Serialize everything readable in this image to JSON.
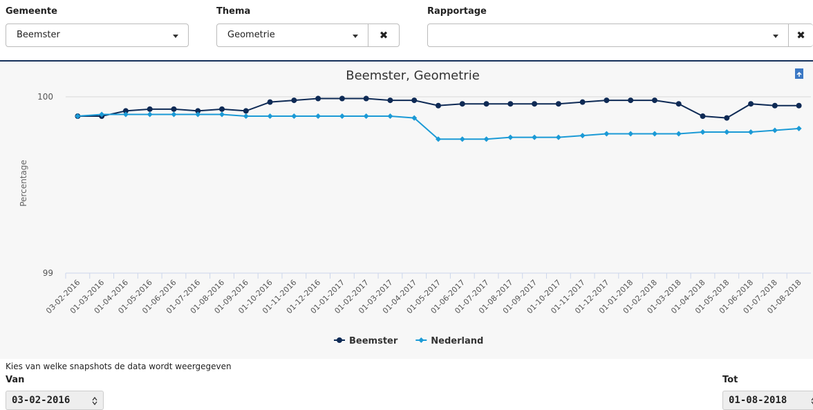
{
  "filters": [
    {
      "label": "Gemeente",
      "value": "Beemster"
    },
    {
      "label": "Thema",
      "value": "Geometrie"
    },
    {
      "label": "Rapportage",
      "value": ""
    }
  ],
  "chart_data": {
    "type": "line",
    "title": "Beemster, Geometrie",
    "y_label": "Percentage",
    "categories": [
      "03-02-2016",
      "01-03-2016",
      "01-04-2016",
      "01-05-2016",
      "01-06-2016",
      "01-07-2016",
      "01-08-2016",
      "01-09-2016",
      "01-10-2016",
      "01-11-2016",
      "01-12-2016",
      "01-01-2017",
      "01-02-2017",
      "01-03-2017",
      "01-04-2017",
      "01-05-2017",
      "01-06-2017",
      "01-07-2017",
      "01-08-2017",
      "01-09-2017",
      "01-10-2017",
      "01-11-2017",
      "01-12-2017",
      "01-01-2018",
      "01-02-2018",
      "01-03-2018",
      "01-04-2018",
      "01-05-2018",
      "01-06-2018",
      "01-07-2018",
      "01-08-2018"
    ],
    "series": [
      {
        "name": "Beemster",
        "color": "#0e2a55",
        "marker": "circle",
        "values": [
          99.89,
          99.89,
          99.92,
          99.93,
          99.93,
          99.92,
          99.93,
          99.92,
          99.97,
          99.98,
          99.99,
          99.99,
          99.99,
          99.98,
          99.98,
          99.95,
          99.96,
          99.96,
          99.96,
          99.96,
          99.96,
          99.97,
          99.98,
          99.98,
          99.98,
          99.96,
          99.89,
          99.88,
          99.96,
          99.95,
          99.95
        ]
      },
      {
        "name": "Nederland",
        "color": "#1b9ad6",
        "marker": "diamond",
        "values": [
          99.89,
          99.9,
          99.9,
          99.9,
          99.9,
          99.9,
          99.9,
          99.89,
          99.89,
          99.89,
          99.89,
          99.89,
          99.89,
          99.89,
          99.88,
          99.76,
          99.76,
          99.76,
          99.77,
          99.77,
          99.77,
          99.78,
          99.79,
          99.79,
          99.79,
          99.79,
          99.8,
          99.8,
          99.8,
          99.81,
          99.82
        ]
      }
    ],
    "ylim": [
      99,
      100
    ],
    "yticks": [
      99,
      100
    ],
    "grid": true,
    "legend": "bottom"
  },
  "footer": {
    "hint": "Kies van welke snapshots de data wordt weergegeven",
    "from_label": "Van",
    "from_value": "03-02-2016",
    "to_label": "Tot",
    "to_value": "01-08-2018"
  }
}
